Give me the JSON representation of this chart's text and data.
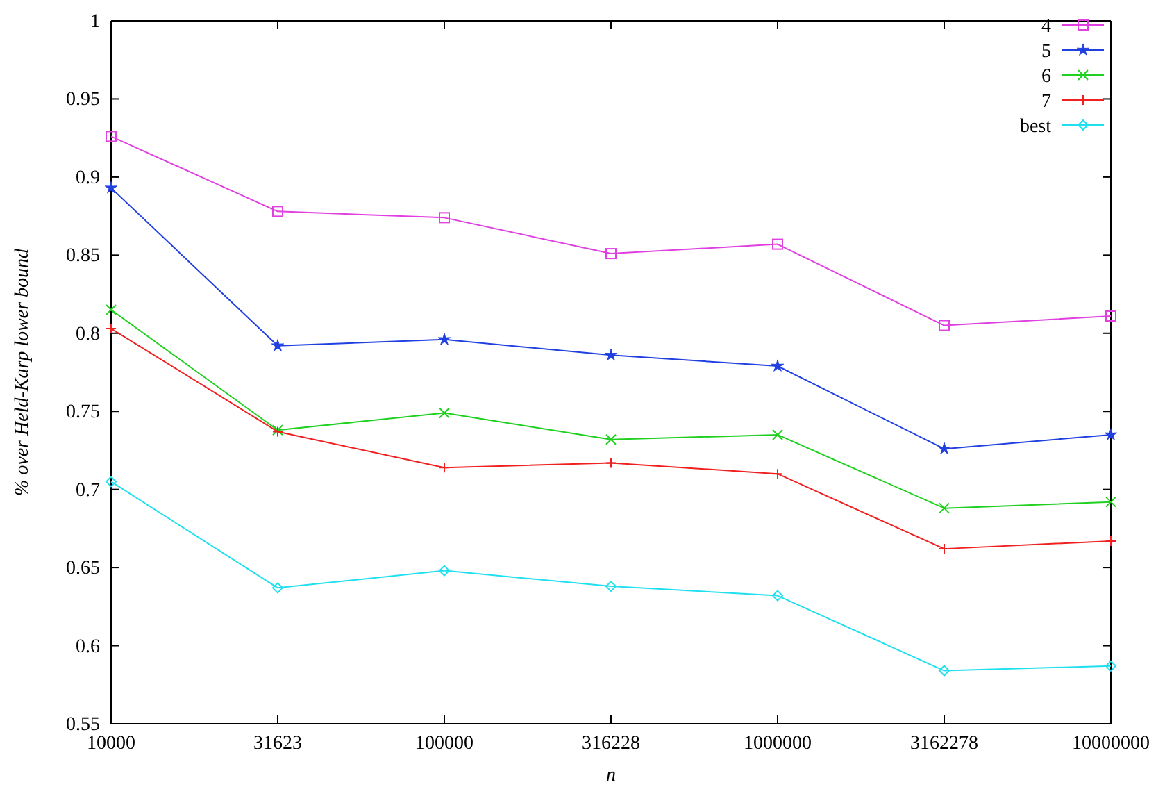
{
  "chart_data": {
    "type": "line",
    "xlabel": "n",
    "ylabel": "% over Held-Karp lower bound",
    "log": "x",
    "x": [
      10000,
      31623,
      100000,
      316228,
      1000000,
      3162278,
      10000000
    ],
    "xlim": [
      10000,
      10000000
    ],
    "xticks": [
      10000,
      31623,
      100000,
      316228,
      1000000,
      3162278,
      10000000
    ],
    "ylim": [
      0.55,
      1
    ],
    "yticks": [
      0.55,
      0.6,
      0.65,
      0.7,
      0.75,
      0.8,
      0.85,
      0.9,
      0.95,
      1
    ],
    "grid": false,
    "legend": "top right",
    "line_style": "solid",
    "series": [
      {
        "name": "4",
        "color": "#e040e0",
        "marker": "square",
        "values": [
          0.926,
          0.878,
          0.874,
          0.851,
          0.857,
          0.805,
          0.811
        ]
      },
      {
        "name": "5",
        "color": "#2040e0",
        "marker": "star",
        "values": [
          0.893,
          0.792,
          0.796,
          0.786,
          0.779,
          0.726,
          0.735
        ]
      },
      {
        "name": "6",
        "color": "#20d020",
        "marker": "cross",
        "values": [
          0.815,
          0.738,
          0.749,
          0.732,
          0.735,
          0.688,
          0.692
        ]
      },
      {
        "name": "7",
        "color": "#f02020",
        "marker": "plus",
        "values": [
          0.803,
          0.737,
          0.714,
          0.717,
          0.71,
          0.662,
          0.667
        ]
      },
      {
        "name": "best",
        "color": "#20e0f0",
        "marker": "diamond",
        "values": [
          0.705,
          0.637,
          0.648,
          0.638,
          0.632,
          0.584,
          0.587
        ]
      }
    ]
  }
}
